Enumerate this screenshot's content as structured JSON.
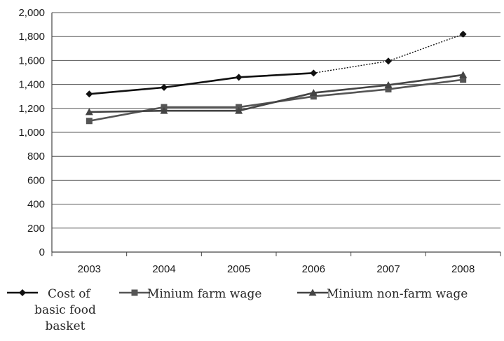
{
  "chart_data": {
    "type": "line",
    "categories": [
      "2003",
      "2004",
      "2005",
      "2006",
      "2007",
      "2008"
    ],
    "ylim": [
      0,
      2000
    ],
    "yticks": [
      "0",
      "200",
      "400",
      "600",
      "800",
      "1,000",
      "1,200",
      "1,400",
      "1,600",
      "1,800",
      "2,000"
    ],
    "grid": true,
    "legend_position": "bottom",
    "series": [
      {
        "name_lines": [
          "Cost of",
          "basic food",
          "basket"
        ],
        "marker": "diamond",
        "color": "#111111",
        "values": [
          1320,
          1375,
          1460,
          1495,
          1595,
          1820
        ],
        "dotted_from_index": 3
      },
      {
        "name_lines": [
          "Minium farm wage"
        ],
        "marker": "square",
        "color": "#555555",
        "values": [
          1095,
          1210,
          1210,
          1300,
          1360,
          1440
        ]
      },
      {
        "name_lines": [
          "Minium non-farm wage"
        ],
        "marker": "triangle",
        "color": "#444444",
        "values": [
          1170,
          1180,
          1180,
          1330,
          1395,
          1480
        ]
      }
    ]
  }
}
